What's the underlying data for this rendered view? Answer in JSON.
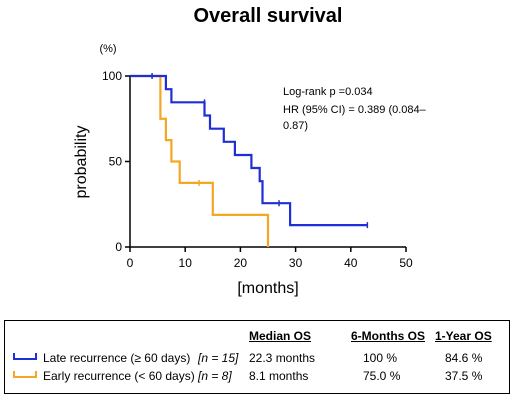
{
  "chart_data": {
    "type": "line",
    "title": "Overall survival",
    "xlabel": "[months]",
    "ylabel": "probability",
    "yunit": "(%)",
    "xlim": [
      0,
      50
    ],
    "ylim": [
      0,
      100
    ],
    "xticks": [
      0,
      10,
      20,
      30,
      40,
      50
    ],
    "yticks": [
      0,
      50,
      100
    ],
    "grid": false,
    "annotations": [
      "Log-rank p =0.034",
      "HR (95% CI) = 0.389 (0.084–",
      "0.87)"
    ],
    "series": [
      {
        "name": "Late recurrence (≥ 60 days)",
        "color": "#1f2fd6",
        "steps": [
          [
            0,
            100
          ],
          [
            6.5,
            100
          ],
          [
            6.5,
            92.3
          ],
          [
            7.5,
            92.3
          ],
          [
            7.5,
            84.6
          ],
          [
            13.5,
            84.6
          ],
          [
            13.5,
            76.9
          ],
          [
            14.5,
            76.9
          ],
          [
            14.5,
            69.2
          ],
          [
            17,
            69.2
          ],
          [
            17,
            61.5
          ],
          [
            19,
            61.5
          ],
          [
            19,
            53.8
          ],
          [
            22,
            53.8
          ],
          [
            22,
            46.2
          ],
          [
            23.5,
            46.2
          ],
          [
            23.5,
            38.5
          ],
          [
            24,
            38.5
          ],
          [
            24,
            25.6
          ],
          [
            29,
            25.6
          ],
          [
            29,
            12.8
          ],
          [
            43,
            12.8
          ]
        ],
        "censored": [
          [
            4,
            100
          ],
          [
            13.5,
            84.6
          ],
          [
            24,
            34
          ],
          [
            27,
            25.6
          ],
          [
            43,
            12.8
          ]
        ]
      },
      {
        "name": "Early recurrence (< 60 days)",
        "color": "#f5a623",
        "steps": [
          [
            0,
            100
          ],
          [
            5.5,
            100
          ],
          [
            5.5,
            75
          ],
          [
            6.5,
            75
          ],
          [
            6.5,
            62.5
          ],
          [
            7.5,
            62.5
          ],
          [
            7.5,
            50
          ],
          [
            9,
            50
          ],
          [
            9,
            37.5
          ],
          [
            15,
            37.5
          ],
          [
            15,
            18.75
          ],
          [
            25,
            18.75
          ],
          [
            25,
            0
          ]
        ],
        "censored": [
          [
            12.5,
            37.5
          ]
        ]
      }
    ]
  },
  "legend_table": {
    "headers": [
      "Median OS",
      "6-Months OS",
      "1-Year OS"
    ],
    "rows": [
      {
        "label": "Late recurrence (≥ 60 days)",
        "n": "[n = 15]",
        "median": "22.3 months",
        "six_month": "100 %",
        "one_year": "84.6 %",
        "color": "#1f2fd6"
      },
      {
        "label": "Early recurrence (< 60 days)",
        "n": "[n = 8]",
        "median": "8.1 months",
        "six_month": "75.0 %",
        "one_year": "37.5 %",
        "color": "#f5a623"
      }
    ]
  }
}
